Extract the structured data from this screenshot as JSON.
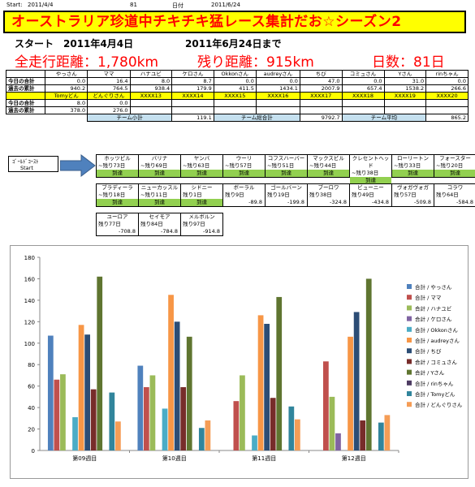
{
  "meta": {
    "start_label": "Start:",
    "start_date": "2011/4/4",
    "day_num": "81",
    "date_label": "日付",
    "end_date": "2011/6/24"
  },
  "banner": {
    "title": "オーストラリア珍道中チキチキ猛レース集計だお☆シーズン2"
  },
  "info": {
    "start_label": "スタート",
    "start_date": "2011年4月4日",
    "until_label": "2011年6月24日まで",
    "total_label": "全走行距離：1,780km",
    "remaining_label": "残り距離：915km",
    "days_label": "日数：81日"
  },
  "table": {
    "header1": [
      "",
      "やっさん",
      "ママ",
      "ハナユビ",
      "ケロさん",
      "Okkonさん",
      "audreyさん",
      "ちび",
      "コミュさん",
      "Yさん",
      "rinちゃん"
    ],
    "today1": [
      "今日の合計",
      "0.0",
      "16.4",
      "8.0",
      "8.7",
      "0.0",
      "0.0",
      "47.0",
      "0.0",
      "31.0",
      "0.0"
    ],
    "past1": [
      "過去の累計",
      "940.2",
      "764.5",
      "938.4",
      "179.9",
      "411.5",
      "1434.1",
      "2007.9",
      "657.4",
      "1538.2",
      "266.6"
    ],
    "header2": [
      "",
      "Tomyどん",
      "どんぐりさん",
      "XXXX13",
      "XXXX14",
      "XXXX15",
      "XXXX16",
      "XXXX17",
      "XXXX18",
      "XXXX19",
      "XXXX20"
    ],
    "today2": [
      "今日の合計",
      "8.0",
      "0.0",
      "",
      "",
      "",
      "",
      "",
      "",
      "",
      ""
    ],
    "past2": [
      "過去の累計",
      "378.0",
      "276.0",
      "",
      "",
      "",
      "",
      "",
      "",
      "",
      ""
    ],
    "team_small_label": "チーム小計",
    "team_small_value": "119.1",
    "team_total_label": "チーム総合計",
    "team_total_value": "9792.7",
    "team_avg_label": "チーム平均",
    "team_avg_value": "865.2"
  },
  "route": {
    "start_title": "ｺﾞｰﾙﾄﾞｺｰｽﾄ",
    "start_sub": "Start",
    "arrived": "到達",
    "row1": [
      {
        "name": "ホッツピル",
        "rem": "~残り73日",
        "status": "到達"
      },
      {
        "name": "バリナ",
        "rem": "~残り69日",
        "status": "到達"
      },
      {
        "name": "ヤンバ",
        "rem": "~残り63日",
        "status": "到達"
      },
      {
        "name": "ウーリ",
        "rem": "~残り57日",
        "status": "到達"
      },
      {
        "name": "コフスハーバー",
        "rem": "~残り51日",
        "status": "到達"
      },
      {
        "name": "マックスビル",
        "rem": "~残り44日",
        "status": "到達"
      },
      {
        "name": "クレセントヘッド",
        "rem": "~残り38日",
        "status": "到達"
      },
      {
        "name": "ローリートン",
        "rem": "~残り33日",
        "status": "到達"
      },
      {
        "name": "フォースター",
        "rem": "~残り20日",
        "status": "到達"
      }
    ],
    "row2": [
      {
        "name": "ブラディーラ",
        "rem": "~残り18日",
        "status": "到達"
      },
      {
        "name": "ニューカッスル",
        "rem": "~残り11日",
        "status": "到達"
      },
      {
        "name": "シドニー",
        "rem": "残り1日",
        "status": "到達"
      },
      {
        "name": "ボーラル",
        "rem": "残り9日",
        "status": "-89.8"
      },
      {
        "name": "ゴールバーン",
        "rem": "残り19日",
        "status": "-199.8"
      },
      {
        "name": "ブーロワ",
        "rem": "残り38日",
        "status": "-324.8"
      },
      {
        "name": "ビューニー",
        "rem": "残り49日",
        "status": "-434.8"
      },
      {
        "name": "ヴォガヴォガ",
        "rem": "残り57日",
        "status": "-509.8"
      },
      {
        "name": "コラワ",
        "rem": "残り64日",
        "status": "-584.8"
      }
    ],
    "row3": [
      {
        "name": "ユーロア",
        "rem": "残り77日",
        "status": "-708.8"
      },
      {
        "name": "セイモア",
        "rem": "残り84日",
        "status": "-784.8"
      },
      {
        "name": "メルボルン",
        "rem": "残り97日",
        "status": "-914.8"
      }
    ]
  },
  "chart_data": {
    "type": "bar",
    "categories": [
      "第09週目",
      "第10週目",
      "第11週目",
      "第12週目"
    ],
    "ylim": [
      0,
      180
    ],
    "yticks": [
      0,
      20,
      40,
      60,
      80,
      100,
      120,
      140,
      160,
      180
    ],
    "grid": false,
    "legend_position": "right",
    "series": [
      {
        "name": "合計 / やっさん",
        "color": "#4f81bd",
        "values": [
          107,
          79,
          0,
          0
        ]
      },
      {
        "name": "合計 / ママ",
        "color": "#c0504d",
        "values": [
          66,
          59,
          46,
          83
        ]
      },
      {
        "name": "合計 / ハナユビ",
        "color": "#9bbb59",
        "values": [
          71,
          70,
          70,
          50
        ]
      },
      {
        "name": "合計 / ケロさん",
        "color": "#8064a2",
        "values": [
          0,
          0,
          0,
          16
        ]
      },
      {
        "name": "合計 / Okkonさん",
        "color": "#4bacc6",
        "values": [
          31,
          39,
          14,
          0
        ]
      },
      {
        "name": "合計 / audreyさん",
        "color": "#f79646",
        "values": [
          117,
          145,
          126,
          106
        ]
      },
      {
        "name": "合計 / ちび",
        "color": "#2c4d75",
        "values": [
          108,
          120,
          118,
          129
        ]
      },
      {
        "name": "合計 / コミュさん",
        "color": "#772c2a",
        "values": [
          57,
          59,
          49,
          28
        ]
      },
      {
        "name": "合計 / Yさん",
        "color": "#5f7530",
        "values": [
          162,
          106,
          143,
          160
        ]
      },
      {
        "name": "合計 / rinちゃん",
        "color": "#4d3b62",
        "values": [
          0,
          0,
          0,
          0
        ]
      },
      {
        "name": "合計 / Tomyどん",
        "color": "#31859c",
        "values": [
          54,
          21,
          41,
          26
        ]
      },
      {
        "name": "合計 / どんぐりさん",
        "color": "#f59d56",
        "values": [
          27,
          28,
          29,
          33
        ]
      }
    ]
  }
}
